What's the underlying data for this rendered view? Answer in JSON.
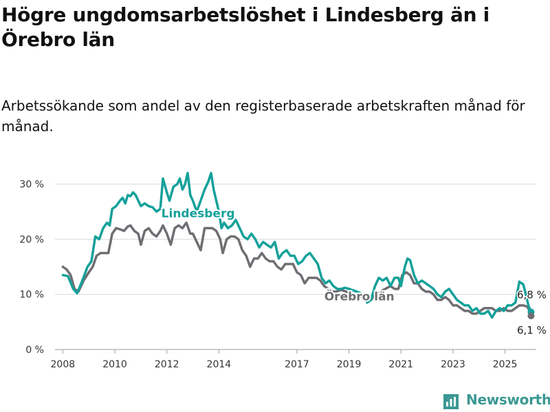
{
  "title": "Högre ungdomsarbetslöshet i Lindesberg än i Örebro län",
  "subtitle": "Arbetssökande som andel av den registerbaserade arbetskraften månad för månad.",
  "brand": {
    "name": "Newsworthy",
    "icon": "newsworthy-logo-icon",
    "color": "#3b9892"
  },
  "chart_data": {
    "type": "line",
    "title": "Högre ungdomsarbetslöshet i Lindesberg än i Örebro län",
    "subtitle": "Arbetssökande som andel av den registerbaserade arbetskraften månad för månad.",
    "xlabel": "",
    "ylabel": "",
    "xlim": [
      2007.7,
      2026.2
    ],
    "ylim": [
      0,
      32
    ],
    "y_ticks": [
      0,
      10,
      20,
      30
    ],
    "y_tick_labels": [
      "0 %",
      "10 %",
      "20 %",
      "30 %"
    ],
    "x_ticks": [
      2008,
      2010,
      2012,
      2014,
      2017,
      2019,
      2021,
      2023,
      2025
    ],
    "x_tick_labels": [
      "2008",
      "2010",
      "2012",
      "2014",
      "2017",
      "2019",
      "2021",
      "2023",
      "2025"
    ],
    "grid": true,
    "legend": "inline labels",
    "series": [
      {
        "name": "Lindesberg",
        "color": "#14a19a",
        "end_label": "6,8 %",
        "points": [
          [
            2008.0,
            13.5
          ],
          [
            2008.2,
            13.3
          ],
          [
            2008.4,
            11.0
          ],
          [
            2008.55,
            10.2
          ],
          [
            2008.75,
            12.5
          ],
          [
            2008.95,
            15.0
          ],
          [
            2009.1,
            16.0
          ],
          [
            2009.25,
            20.5
          ],
          [
            2009.4,
            20.0
          ],
          [
            2009.55,
            22.0
          ],
          [
            2009.7,
            23.0
          ],
          [
            2009.8,
            22.5
          ],
          [
            2009.9,
            25.5
          ],
          [
            2010.05,
            26.0
          ],
          [
            2010.2,
            27.0
          ],
          [
            2010.3,
            27.5
          ],
          [
            2010.4,
            26.5
          ],
          [
            2010.5,
            28.0
          ],
          [
            2010.6,
            27.8
          ],
          [
            2010.7,
            28.5
          ],
          [
            2010.8,
            28.0
          ],
          [
            2010.9,
            27.0
          ],
          [
            2011.0,
            26.0
          ],
          [
            2011.15,
            26.5
          ],
          [
            2011.3,
            26.0
          ],
          [
            2011.45,
            25.8
          ],
          [
            2011.6,
            25.0
          ],
          [
            2011.75,
            25.5
          ],
          [
            2011.85,
            31.0
          ],
          [
            2012.0,
            28.5
          ],
          [
            2012.1,
            27.0
          ],
          [
            2012.25,
            29.5
          ],
          [
            2012.4,
            30.0
          ],
          [
            2012.5,
            31.0
          ],
          [
            2012.6,
            29.0
          ],
          [
            2012.7,
            30.0
          ],
          [
            2012.8,
            32.0
          ],
          [
            2012.9,
            28.0
          ],
          [
            2013.0,
            27.0
          ],
          [
            2013.15,
            25.0
          ],
          [
            2013.3,
            27.0
          ],
          [
            2013.45,
            29.0
          ],
          [
            2013.6,
            30.5
          ],
          [
            2013.7,
            32.0
          ],
          [
            2013.8,
            29.0
          ],
          [
            2013.9,
            27.0
          ],
          [
            2014.0,
            25.0
          ],
          [
            2014.1,
            22.0
          ],
          [
            2014.2,
            23.0
          ],
          [
            2014.35,
            22.0
          ],
          [
            2014.5,
            22.5
          ],
          [
            2014.65,
            23.5
          ],
          [
            2014.8,
            22.0
          ],
          [
            2014.95,
            20.5
          ],
          [
            2015.1,
            20.0
          ],
          [
            2015.25,
            21.0
          ],
          [
            2015.4,
            20.0
          ],
          [
            2015.55,
            18.5
          ],
          [
            2015.7,
            19.5
          ],
          [
            2015.85,
            19.0
          ],
          [
            2016.0,
            18.5
          ],
          [
            2016.15,
            19.5
          ],
          [
            2016.3,
            16.5
          ],
          [
            2016.45,
            17.5
          ],
          [
            2016.6,
            18.0
          ],
          [
            2016.75,
            17.0
          ],
          [
            2016.9,
            17.0
          ],
          [
            2017.05,
            15.5
          ],
          [
            2017.2,
            16.0
          ],
          [
            2017.35,
            17.0
          ],
          [
            2017.5,
            17.5
          ],
          [
            2017.65,
            16.5
          ],
          [
            2017.8,
            15.5
          ],
          [
            2017.95,
            13.0
          ],
          [
            2018.1,
            12.0
          ],
          [
            2018.25,
            12.5
          ],
          [
            2018.4,
            11.5
          ],
          [
            2018.55,
            11.0
          ],
          [
            2018.7,
            11.0
          ],
          [
            2018.85,
            11.2
          ],
          [
            2019.0,
            11.0
          ],
          [
            2019.3,
            10.5
          ],
          [
            2019.55,
            10.0
          ],
          [
            2019.7,
            8.5
          ],
          [
            2019.85,
            9.0
          ],
          [
            2020.0,
            11.5
          ],
          [
            2020.15,
            13.0
          ],
          [
            2020.3,
            12.5
          ],
          [
            2020.45,
            13.0
          ],
          [
            2020.6,
            11.5
          ],
          [
            2020.75,
            13.0
          ],
          [
            2020.9,
            13.0
          ],
          [
            2021.0,
            11.5
          ],
          [
            2021.15,
            15.0
          ],
          [
            2021.25,
            16.5
          ],
          [
            2021.35,
            16.2
          ],
          [
            2021.5,
            13.5
          ],
          [
            2021.65,
            12.0
          ],
          [
            2021.8,
            12.5
          ],
          [
            2021.95,
            12.0
          ],
          [
            2022.1,
            11.5
          ],
          [
            2022.25,
            11.0
          ],
          [
            2022.4,
            10.0
          ],
          [
            2022.55,
            9.5
          ],
          [
            2022.7,
            10.5
          ],
          [
            2022.85,
            11.0
          ],
          [
            2023.0,
            10.0
          ],
          [
            2023.15,
            9.0
          ],
          [
            2023.3,
            8.5
          ],
          [
            2023.45,
            8.0
          ],
          [
            2023.6,
            8.0
          ],
          [
            2023.75,
            7.0
          ],
          [
            2023.9,
            7.5
          ],
          [
            2024.05,
            6.5
          ],
          [
            2024.2,
            6.5
          ],
          [
            2024.35,
            7.0
          ],
          [
            2024.5,
            5.8
          ],
          [
            2024.65,
            7.0
          ],
          [
            2024.8,
            7.5
          ],
          [
            2024.95,
            7.0
          ],
          [
            2025.1,
            8.0
          ],
          [
            2025.25,
            8.0
          ],
          [
            2025.4,
            8.5
          ],
          [
            2025.55,
            12.3
          ],
          [
            2025.7,
            11.8
          ],
          [
            2025.8,
            10.0
          ],
          [
            2025.9,
            8.0
          ],
          [
            2026.0,
            6.8
          ]
        ]
      },
      {
        "name": "Örebro län",
        "color": "#6e6e73",
        "end_label": "6,1 %",
        "points": [
          [
            2008.0,
            15.0
          ],
          [
            2008.15,
            14.5
          ],
          [
            2008.3,
            13.5
          ],
          [
            2008.45,
            11.0
          ],
          [
            2008.6,
            10.5
          ],
          [
            2008.8,
            12.5
          ],
          [
            2009.0,
            14.0
          ],
          [
            2009.15,
            15.0
          ],
          [
            2009.3,
            17.0
          ],
          [
            2009.45,
            17.5
          ],
          [
            2009.6,
            17.5
          ],
          [
            2009.75,
            17.5
          ],
          [
            2009.9,
            21.0
          ],
          [
            2010.05,
            22.0
          ],
          [
            2010.2,
            21.8
          ],
          [
            2010.35,
            21.5
          ],
          [
            2010.5,
            22.3
          ],
          [
            2010.6,
            22.5
          ],
          [
            2010.75,
            21.5
          ],
          [
            2010.9,
            21.0
          ],
          [
            2011.0,
            19.0
          ],
          [
            2011.15,
            21.5
          ],
          [
            2011.3,
            22.0
          ],
          [
            2011.45,
            21.0
          ],
          [
            2011.6,
            20.5
          ],
          [
            2011.75,
            21.5
          ],
          [
            2011.85,
            22.5
          ],
          [
            2012.0,
            21.0
          ],
          [
            2012.15,
            19.0
          ],
          [
            2012.3,
            22.0
          ],
          [
            2012.45,
            22.5
          ],
          [
            2012.6,
            22.0
          ],
          [
            2012.75,
            23.0
          ],
          [
            2012.9,
            21.0
          ],
          [
            2013.0,
            21.0
          ],
          [
            2013.15,
            19.5
          ],
          [
            2013.3,
            18.0
          ],
          [
            2013.45,
            22.0
          ],
          [
            2013.6,
            22.0
          ],
          [
            2013.75,
            22.0
          ],
          [
            2013.9,
            21.5
          ],
          [
            2014.05,
            20.0
          ],
          [
            2014.15,
            17.5
          ],
          [
            2014.3,
            20.0
          ],
          [
            2014.45,
            20.5
          ],
          [
            2014.6,
            20.5
          ],
          [
            2014.75,
            20.0
          ],
          [
            2014.9,
            18.0
          ],
          [
            2015.05,
            17.0
          ],
          [
            2015.2,
            15.0
          ],
          [
            2015.35,
            16.5
          ],
          [
            2015.5,
            16.5
          ],
          [
            2015.65,
            17.5
          ],
          [
            2015.8,
            16.5
          ],
          [
            2015.95,
            16.0
          ],
          [
            2016.1,
            16.0
          ],
          [
            2016.25,
            15.0
          ],
          [
            2016.4,
            14.5
          ],
          [
            2016.55,
            15.5
          ],
          [
            2016.7,
            15.5
          ],
          [
            2016.85,
            15.5
          ],
          [
            2017.0,
            14.0
          ],
          [
            2017.15,
            13.5
          ],
          [
            2017.3,
            12.0
          ],
          [
            2017.45,
            13.0
          ],
          [
            2017.6,
            13.0
          ],
          [
            2017.75,
            13.0
          ],
          [
            2017.9,
            12.5
          ],
          [
            2018.05,
            11.5
          ],
          [
            2018.2,
            11.0
          ],
          [
            2018.35,
            10.5
          ],
          [
            2018.5,
            10.5
          ],
          [
            2018.7,
            10.8
          ],
          [
            2018.9,
            10.5
          ],
          [
            2019.1,
            10.0
          ],
          [
            2019.3,
            9.5
          ],
          [
            2019.5,
            9.5
          ],
          [
            2019.7,
            9.0
          ],
          [
            2019.85,
            9.0
          ],
          [
            2020.0,
            10.0
          ],
          [
            2020.2,
            10.5
          ],
          [
            2020.4,
            11.0
          ],
          [
            2020.6,
            11.5
          ],
          [
            2020.75,
            11.0
          ],
          [
            2020.9,
            11.0
          ],
          [
            2021.05,
            13.5
          ],
          [
            2021.2,
            14.0
          ],
          [
            2021.35,
            13.5
          ],
          [
            2021.5,
            12.0
          ],
          [
            2021.65,
            12.0
          ],
          [
            2021.8,
            11.0
          ],
          [
            2021.95,
            10.5
          ],
          [
            2022.1,
            10.5
          ],
          [
            2022.25,
            10.0
          ],
          [
            2022.4,
            9.0
          ],
          [
            2022.55,
            9.0
          ],
          [
            2022.7,
            9.5
          ],
          [
            2022.85,
            9.0
          ],
          [
            2023.0,
            8.0
          ],
          [
            2023.15,
            8.0
          ],
          [
            2023.3,
            7.5
          ],
          [
            2023.45,
            7.0
          ],
          [
            2023.6,
            7.0
          ],
          [
            2023.75,
            6.5
          ],
          [
            2023.9,
            6.5
          ],
          [
            2024.05,
            7.0
          ],
          [
            2024.2,
            7.5
          ],
          [
            2024.35,
            7.5
          ],
          [
            2024.5,
            7.5
          ],
          [
            2024.65,
            7.0
          ],
          [
            2024.8,
            7.0
          ],
          [
            2024.95,
            7.5
          ],
          [
            2025.1,
            7.0
          ],
          [
            2025.25,
            7.0
          ],
          [
            2025.4,
            7.5
          ],
          [
            2025.55,
            8.0
          ],
          [
            2025.7,
            8.0
          ],
          [
            2025.85,
            7.8
          ],
          [
            2025.95,
            7.0
          ],
          [
            2026.0,
            6.1
          ]
        ]
      }
    ]
  }
}
